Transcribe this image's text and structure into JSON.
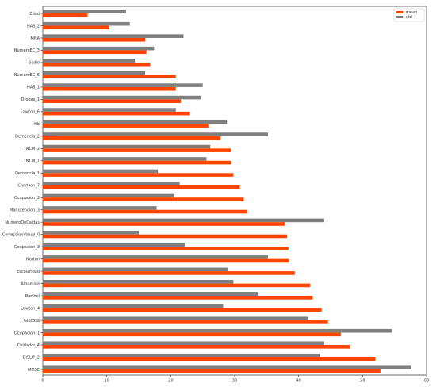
{
  "chart_data": {
    "type": "bar",
    "orientation": "horizontal",
    "categories": [
      "Edad",
      "HAS_2",
      "MNA",
      "NumeroEC_3",
      "Sodio",
      "NumeroEC_6",
      "HAS_1",
      "Drogas_1",
      "Lawton_6",
      "Hb",
      "Demencia_2",
      "TNCM_2",
      "TNCM_1",
      "Demencia_1",
      "Charlson_7",
      "Ocupacion_2",
      "Manutencion_3",
      "NumeroDeCaidas",
      "CorreccionVisual_0",
      "Ocupacion_3",
      "Norton",
      "Escolaridad",
      "Albumina",
      "Barthel",
      "Lawton_4",
      "Glucosa",
      "Ocupacion_1",
      "Cuidador_4",
      "DISLIP_2",
      "MMSE"
    ],
    "series": [
      {
        "name": "mean",
        "color": "#ff4500",
        "values": [
          7.0,
          10.4,
          16.0,
          16.2,
          16.8,
          20.8,
          20.8,
          21.6,
          23.0,
          26.0,
          27.8,
          29.4,
          29.5,
          29.8,
          30.8,
          31.4,
          32.0,
          37.8,
          38.2,
          38.4,
          38.5,
          39.4,
          41.8,
          42.2,
          43.6,
          44.6,
          46.6,
          48.0,
          52.0,
          52.8
        ]
      },
      {
        "name": "std",
        "color": "#808080",
        "values": [
          13.0,
          13.6,
          22.0,
          17.4,
          14.4,
          16.0,
          25.0,
          24.8,
          20.8,
          28.8,
          35.2,
          26.2,
          25.6,
          18.0,
          21.4,
          20.6,
          17.8,
          44.0,
          15.0,
          22.2,
          35.2,
          29.0,
          29.8,
          33.6,
          28.2,
          41.4,
          54.6,
          44.0,
          43.4,
          57.6
        ]
      }
    ],
    "xticks": [
      "0",
      "10",
      "20",
      "30",
      "40",
      "50",
      "60"
    ],
    "xlim": [
      0,
      60
    ],
    "grid": false,
    "legend_position": "top-right"
  }
}
